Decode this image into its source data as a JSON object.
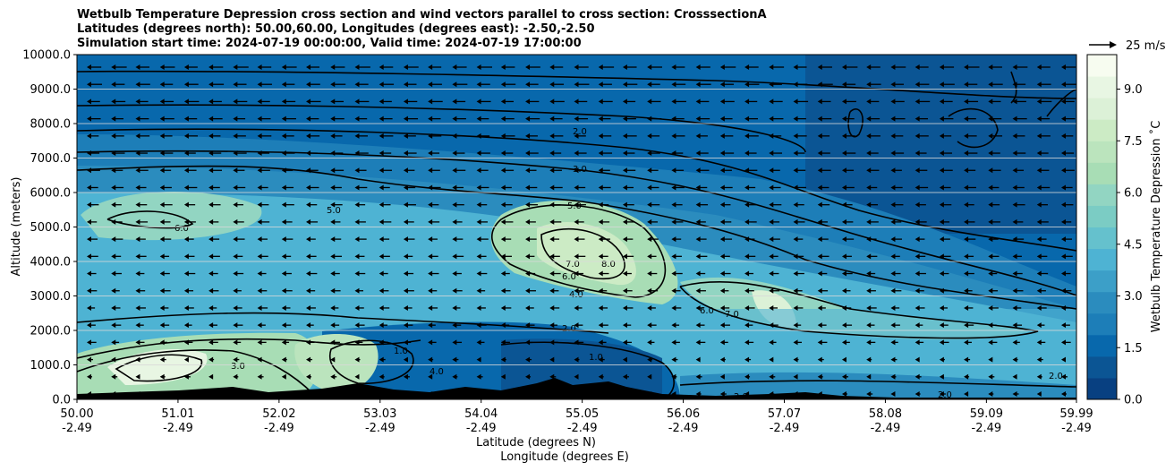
{
  "title": {
    "line1": "Wetbulb Temperature Depression cross section and wind vectors parallel to cross section: CrosssectionA",
    "line2": "Latitudes (degrees north): 50.00,60.00, Longitudes (degrees east): -2.50,-2.50",
    "line3": "Simulation start time: 2024-07-19 00:00:00, Valid time: 2024-07-19 17:00:00"
  },
  "chart_data": {
    "type": "heatmap",
    "ylabel": "Altitude (meters)",
    "xlabel_lat": "Latitude (degrees N)",
    "xlabel_lon": "Longitude (degrees E)",
    "ylim": [
      0,
      10000
    ],
    "y_ticks": [
      "0.0",
      "1000.0",
      "2000.0",
      "3000.0",
      "4000.0",
      "5000.0",
      "6000.0",
      "7000.0",
      "8000.0",
      "9000.0",
      "10000.0"
    ],
    "x_range": [
      50.0,
      59.99
    ],
    "x_ticks": [
      {
        "lat": "50.00",
        "lon": "-2.49"
      },
      {
        "lat": "51.01",
        "lon": "-2.49"
      },
      {
        "lat": "52.02",
        "lon": "-2.49"
      },
      {
        "lat": "53.03",
        "lon": "-2.49"
      },
      {
        "lat": "54.04",
        "lon": "-2.49"
      },
      {
        "lat": "55.05",
        "lon": "-2.49"
      },
      {
        "lat": "56.06",
        "lon": "-2.49"
      },
      {
        "lat": "57.07",
        "lon": "-2.49"
      },
      {
        "lat": "58.08",
        "lon": "-2.49"
      },
      {
        "lat": "59.09",
        "lon": "-2.49"
      },
      {
        "lat": "59.99",
        "lon": "-2.49"
      }
    ],
    "colorbar": {
      "label": "Wetbulb Temperature Depression ˚C",
      "ticks": [
        "0.0",
        "1.5",
        "3.0",
        "4.5",
        "6.0",
        "7.5",
        "9.0"
      ],
      "range": [
        0,
        10
      ],
      "colors": [
        "#084081",
        "#0b5594",
        "#0868ac",
        "#1d7eb8",
        "#2b8cbe",
        "#3c9fc8",
        "#4eb3d3",
        "#65c1cd",
        "#7bccc4",
        "#92d5c2",
        "#a8ddb5",
        "#bbe4bd",
        "#ccebc5",
        "#dcf1d7",
        "#e8f6e3",
        "#f7fcf0"
      ]
    },
    "wind_key": {
      "label": "25 m/s",
      "speed": 25
    },
    "grid": "horizontal",
    "contour_levels_labeled": [
      "1.0",
      "2.0",
      "3.0",
      "4.0",
      "5.0",
      "6.0",
      "7.0",
      "8.0"
    ]
  }
}
